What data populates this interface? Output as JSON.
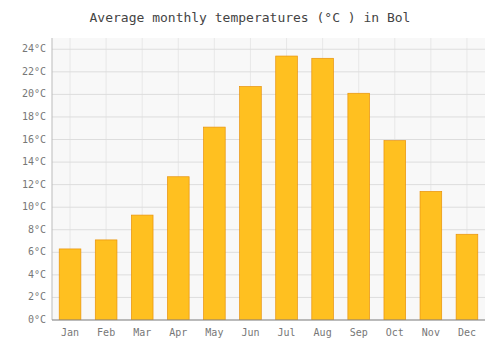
{
  "chart_data": {
    "type": "bar",
    "title": "Average monthly temperatures (°C ) in Bol",
    "categories": [
      "Jan",
      "Feb",
      "Mar",
      "Apr",
      "May",
      "Jun",
      "Jul",
      "Aug",
      "Sep",
      "Oct",
      "Nov",
      "Dec"
    ],
    "values": [
      6.3,
      7.1,
      9.3,
      12.7,
      17.1,
      20.7,
      23.4,
      23.2,
      20.1,
      15.9,
      11.4,
      7.6
    ],
    "color": "#FFC020",
    "ylim": [
      0,
      25
    ],
    "yticks": [
      {
        "value": 0,
        "label": "0°C"
      },
      {
        "value": 2,
        "label": "2°C"
      },
      {
        "value": 4,
        "label": "4°C"
      },
      {
        "value": 6,
        "label": "6°C"
      },
      {
        "value": 8,
        "label": "8°C"
      },
      {
        "value": 10,
        "label": "10°C"
      },
      {
        "value": 12,
        "label": "12°C"
      },
      {
        "value": 14,
        "label": "14°C"
      },
      {
        "value": 16,
        "label": "16°C"
      },
      {
        "value": 18,
        "label": "18°C"
      },
      {
        "value": 20,
        "label": "20°C"
      },
      {
        "value": 22,
        "label": "22°C"
      },
      {
        "value": 24,
        "label": "24°C"
      }
    ],
    "grid": true
  }
}
